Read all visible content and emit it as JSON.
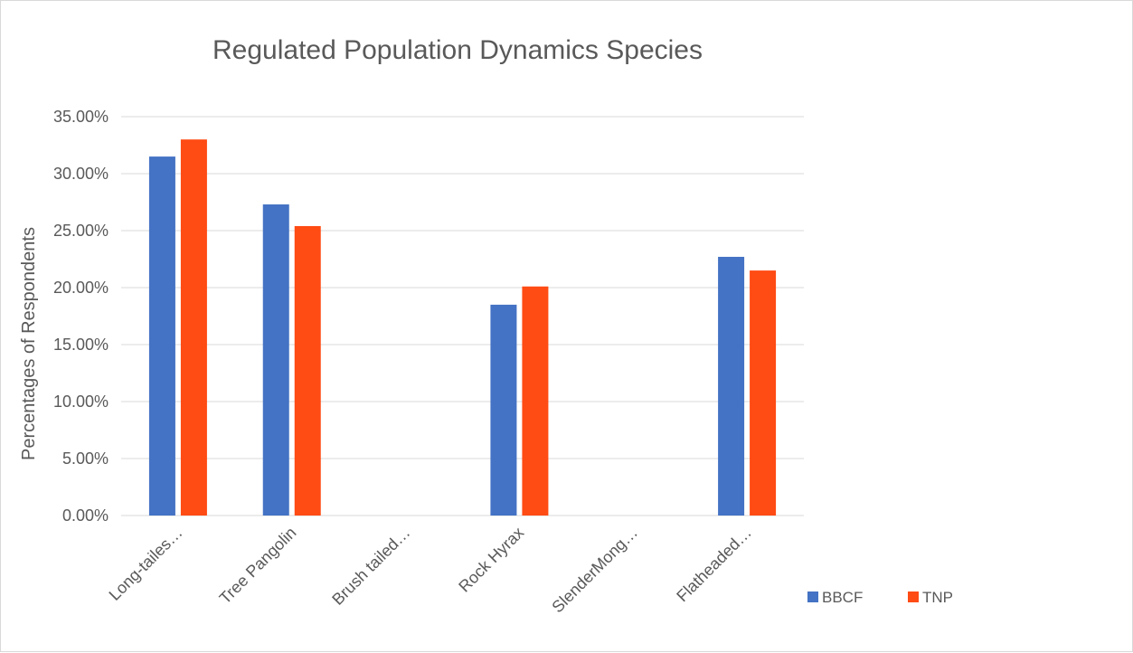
{
  "chart_data": {
    "type": "bar",
    "title": "Regulated Population Dynamics Species",
    "xlabel": "",
    "ylabel": "Percentages of Respondents",
    "categories": [
      "Long-tailes…",
      "Tree Pangolin",
      "Brush tailed…",
      "Rock Hyrax",
      "SlenderMong…",
      "Flatheaded…"
    ],
    "series": [
      {
        "name": "BBCF",
        "color": "#4472c4",
        "values": [
          0.315,
          0.273,
          0,
          0.185,
          0,
          0.227
        ]
      },
      {
        "name": "TNP",
        "color": "#ff4b14",
        "values": [
          0.33,
          0.254,
          0,
          0.201,
          0,
          0.215
        ]
      }
    ],
    "ylim": [
      0,
      0.35
    ],
    "yticks": [
      0,
      0.05,
      0.1,
      0.15,
      0.2,
      0.25,
      0.3,
      0.35
    ],
    "ytick_labels": [
      "0.00%",
      "5.00%",
      "10.00%",
      "15.00%",
      "20.00%",
      "25.00%",
      "30.00%",
      "35.00%"
    ],
    "grid": true,
    "legend_position": "bottom-right"
  }
}
